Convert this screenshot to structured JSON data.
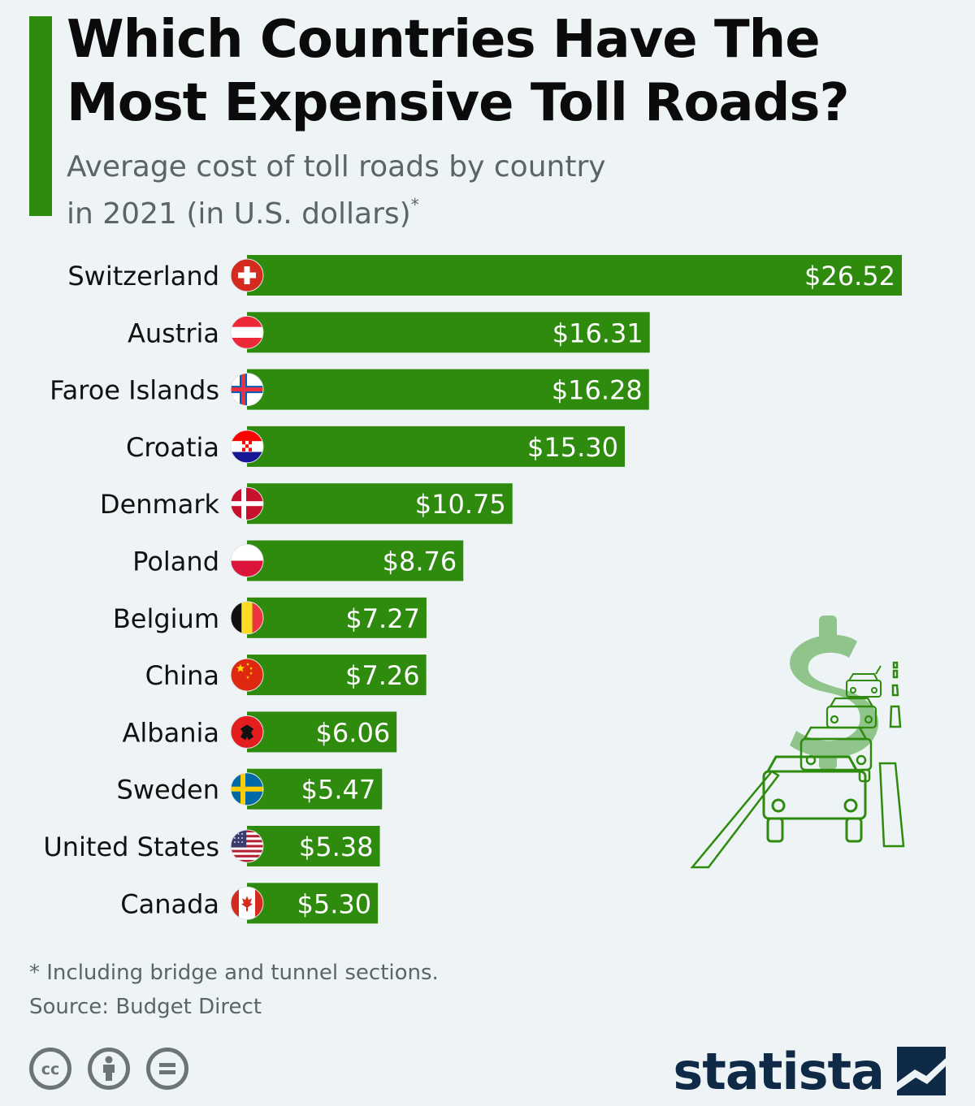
{
  "header": {
    "title_line1": "Which Countries Have The",
    "title_line2": "Most Expensive Toll Roads?",
    "subtitle_line1": "Average cost of toll roads by country",
    "subtitle_line2": "in 2021 (in U.S. dollars)",
    "subtitle_marker": "*"
  },
  "colors": {
    "bar": "#2e8b0e",
    "accent": "#2e8b0e",
    "brand": "#0e2a47",
    "background": "#eef3f6"
  },
  "chart_data": {
    "type": "bar",
    "orientation": "horizontal",
    "title": "Which Countries Have The Most Expensive Toll Roads?",
    "subtitle": "Average cost of toll roads by country in 2021 (in U.S. dollars)*",
    "xlabel": "",
    "ylabel": "",
    "categories": [
      "Switzerland",
      "Austria",
      "Faroe Islands",
      "Croatia",
      "Denmark",
      "Poland",
      "Belgium",
      "China",
      "Albania",
      "Sweden",
      "United States",
      "Canada"
    ],
    "values": [
      26.52,
      16.31,
      16.28,
      15.3,
      10.75,
      8.76,
      7.27,
      7.26,
      6.06,
      5.47,
      5.38,
      5.3
    ],
    "value_labels": [
      "$26.52",
      "$16.31",
      "$16.28",
      "$15.30",
      "$10.75",
      "$8.76",
      "$7.27",
      "$7.26",
      "$6.06",
      "$5.47",
      "$5.38",
      "$5.30"
    ],
    "flags": [
      "switzerland-flag-icon",
      "austria-flag-icon",
      "faroe-islands-flag-icon",
      "croatia-flag-icon",
      "denmark-flag-icon",
      "poland-flag-icon",
      "belgium-flag-icon",
      "china-flag-icon",
      "albania-flag-icon",
      "sweden-flag-icon",
      "united-states-flag-icon",
      "canada-flag-icon"
    ],
    "xlim": [
      0,
      26.52
    ],
    "grid": false,
    "legend": "none"
  },
  "footer": {
    "note": "* Including bridge and tunnel sections.",
    "source": "Source: Budget Direct",
    "brand": "statista"
  },
  "icons": {
    "license": [
      "cc-icon",
      "attribution-icon",
      "no-derivatives-icon"
    ],
    "illustration": "toll-road-cars-dollar-illustration"
  }
}
